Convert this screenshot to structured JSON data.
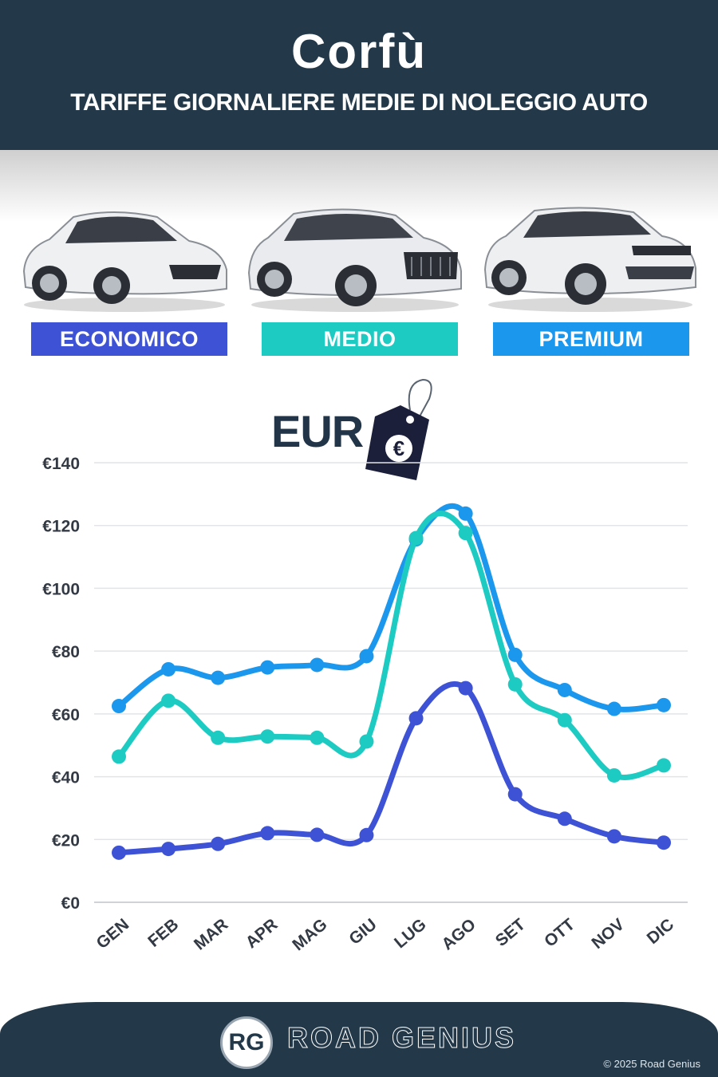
{
  "header": {
    "title": "Corfù",
    "subtitle": "TARIFFE GIORNALIERE MEDIE DI NOLEGGIO AUTO"
  },
  "categories": {
    "economy": "ECONOMICO",
    "medium": "MEDIO",
    "premium": "PREMIUM"
  },
  "currency_label": "EUR",
  "currency_icon": "euro-price-tag-icon",
  "colors": {
    "header_bg": "#233949",
    "economy": "#3e52d6",
    "medium": "#1ecbc3",
    "premium": "#1c97ee"
  },
  "chart_data": {
    "type": "line",
    "categories": [
      "GEN",
      "FEB",
      "MAR",
      "APR",
      "MAG",
      "GIU",
      "LUG",
      "AGO",
      "SET",
      "OTT",
      "NOV",
      "DIC"
    ],
    "series": [
      {
        "name": "PREMIUM",
        "color": "#1c97ee",
        "values": [
          62.5,
          74.2,
          71.5,
          74.8,
          75.6,
          78.4,
          115.6,
          123.8,
          78.8,
          67.6,
          61.6,
          62.8
        ]
      },
      {
        "name": "MEDIO",
        "color": "#1ecbc3",
        "values": [
          46.4,
          64.2,
          52.4,
          52.8,
          52.4,
          51.2,
          116.0,
          117.6,
          69.4,
          58.0,
          40.4,
          43.6
        ]
      },
      {
        "name": "ECONOMICO",
        "color": "#3e52d6",
        "values": [
          15.8,
          17.0,
          18.6,
          22.0,
          21.5,
          21.4,
          58.6,
          68.2,
          34.4,
          26.6,
          21.0,
          19.0
        ]
      }
    ],
    "yticks": [
      "€0",
      "€20",
      "€40",
      "€60",
      "€80",
      "€100",
      "€120",
      "€140"
    ],
    "ylim": [
      0,
      140
    ],
    "grid": true,
    "title": "",
    "xlabel": "",
    "ylabel": ""
  },
  "footer": {
    "logo_text": "RG",
    "brand": "ROAD GENIUS",
    "copyright": "© 2025 Road Genius"
  }
}
